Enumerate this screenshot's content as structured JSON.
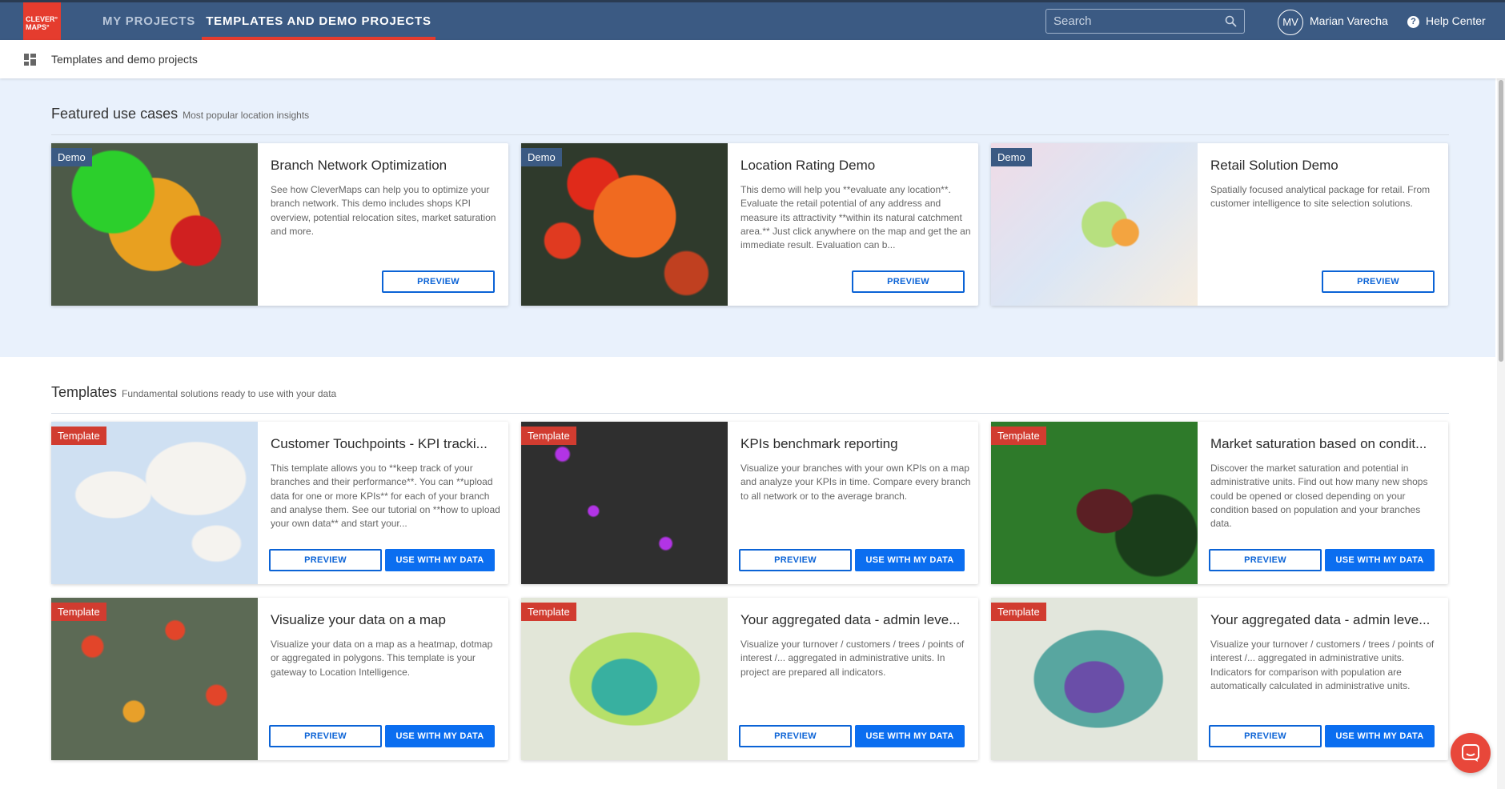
{
  "header": {
    "logo_lines": [
      "CLEVER°",
      "MAPS°"
    ],
    "nav": [
      "MY PROJECTS",
      "TEMPLATES AND DEMO PROJECTS"
    ],
    "search_placeholder": "Search",
    "user": {
      "initials": "MV",
      "name": "Marian Varecha"
    },
    "help": "Help Center"
  },
  "breadcrumb": "Templates and demo projects",
  "sections": [
    {
      "title": "Featured use cases",
      "subtitle": "Most popular location insights",
      "cards": [
        {
          "badge": "Demo",
          "title": "Branch Network Optimization",
          "description": "See how CleverMaps can help you to optimize your branch network. This demo includes shops KPI overview, potential relocation sites, market saturation and more.",
          "buttons": [
            "PREVIEW"
          ]
        },
        {
          "badge": "Demo",
          "title": "Location Rating Demo",
          "description": "This demo will help you **evaluate any location**. Evaluate the retail potential of any address and measure its attractivity **within its natural catchment area.**  Just click anywhere on the map and get the an immediate result. Evaluation can b...",
          "buttons": [
            "PREVIEW"
          ]
        },
        {
          "badge": "Demo",
          "title": "Retail Solution Demo",
          "description": "Spatially focused analytical package for retail. From customer intelligence to site selection solutions.",
          "buttons": [
            "PREVIEW"
          ]
        }
      ]
    },
    {
      "title": "Templates",
      "subtitle": "Fundamental solutions ready to use with your data",
      "cards": [
        {
          "badge": "Template",
          "title": "Customer Touchpoints - KPI tracki...",
          "description": "This template allows you to **keep track of your branches and their performance**. You can **upload data for one or more KPIs** for each of your branch and analyse them. See our tutorial on **how to upload your own data** and start your...",
          "buttons": [
            "PREVIEW",
            "USE WITH MY DATA"
          ]
        },
        {
          "badge": "Template",
          "title": "KPIs benchmark reporting",
          "description": "Visualize your branches with your own KPIs on a map and analyze your KPIs in time. Compare every branch to all network or to the average branch.",
          "buttons": [
            "PREVIEW",
            "USE WITH MY DATA"
          ]
        },
        {
          "badge": "Template",
          "title": "Market saturation based on condit...",
          "description": "Discover the market saturation and potential in administrative units. Find out how many new shops could be opened or closed depending on your condition based on population and your branches data.",
          "buttons": [
            "PREVIEW",
            "USE WITH MY DATA"
          ]
        },
        {
          "badge": "Template",
          "title": "Visualize your data on a map",
          "description": "Visualize your data on a map as a heatmap, dotmap or aggregated in polygons. This template is your gateway to Location Intelligence.",
          "buttons": [
            "PREVIEW",
            "USE WITH MY DATA"
          ]
        },
        {
          "badge": "Template",
          "title": "Your aggregated data - admin leve...",
          "description": "Visualize your turnover / customers / trees / points of interest /... aggregated in administrative units. In project are prepared all indicators.",
          "buttons": [
            "PREVIEW",
            "USE WITH MY DATA"
          ]
        },
        {
          "badge": "Template",
          "title": "Your aggregated data - admin leve...",
          "description": "Visualize your turnover / customers / trees / points of interest /... aggregated in administrative units. Indicators for comparison with population are automatically calculated in administrative units.",
          "buttons": [
            "PREVIEW",
            "USE WITH MY DATA"
          ]
        }
      ]
    }
  ]
}
